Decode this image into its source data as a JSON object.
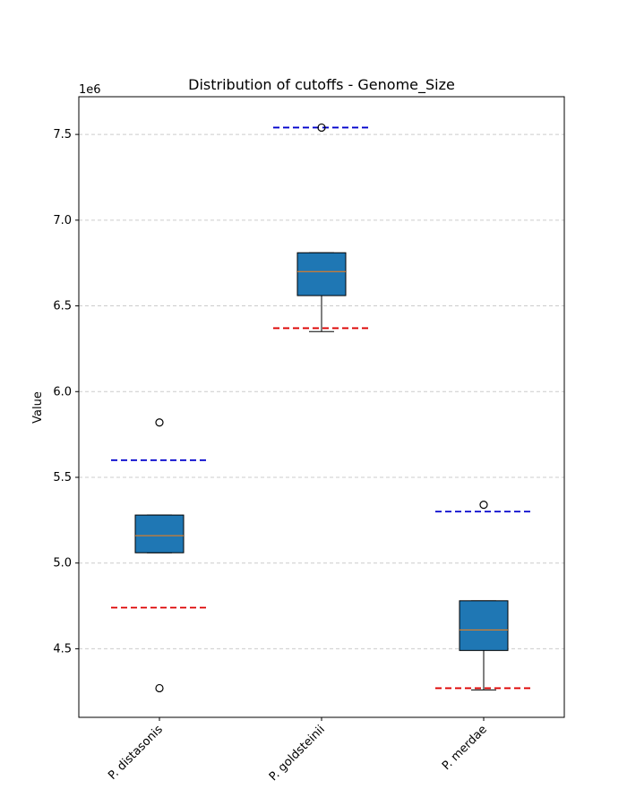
{
  "chart_data": {
    "type": "box",
    "title": "Distribution of cutoffs - Genome_Size",
    "ylabel": "Value",
    "xlabel": "",
    "y_offset_label": "1e6",
    "y_scale": 1000000,
    "ylim": [
      4.1,
      7.72
    ],
    "yticks": [
      4.5,
      5.0,
      5.5,
      6.0,
      6.5,
      7.0,
      7.5
    ],
    "ytick_labels": [
      "4.5",
      "5.0",
      "5.5",
      "6.0",
      "6.5",
      "7.0",
      "7.5"
    ],
    "grid": "y, dashed",
    "categories": [
      "P. distasonis",
      "P. goldsteinii",
      "P. merdae"
    ],
    "boxes": [
      {
        "whisker_low": 5.06,
        "q1": 5.06,
        "median": 5.16,
        "q3": 5.28,
        "whisker_high": 5.28,
        "outliers": [
          5.82,
          4.27
        ],
        "upper_cutoff": 5.6,
        "lower_cutoff": 4.74
      },
      {
        "whisker_low": 6.35,
        "q1": 6.56,
        "median": 6.7,
        "q3": 6.81,
        "whisker_high": 6.81,
        "outliers": [
          7.54
        ],
        "upper_cutoff": 7.54,
        "lower_cutoff": 6.37
      },
      {
        "whisker_low": 4.26,
        "q1": 4.49,
        "median": 4.61,
        "q3": 4.78,
        "whisker_high": 4.78,
        "outliers": [
          5.34
        ],
        "upper_cutoff": 5.3,
        "lower_cutoff": 4.27
      }
    ],
    "colors": {
      "box_fill": "#1f77b4",
      "median": "#ff7f0e",
      "upper_cutoff": "#0000cc",
      "lower_cutoff": "#dd0000",
      "grid": "#cccccc"
    }
  }
}
